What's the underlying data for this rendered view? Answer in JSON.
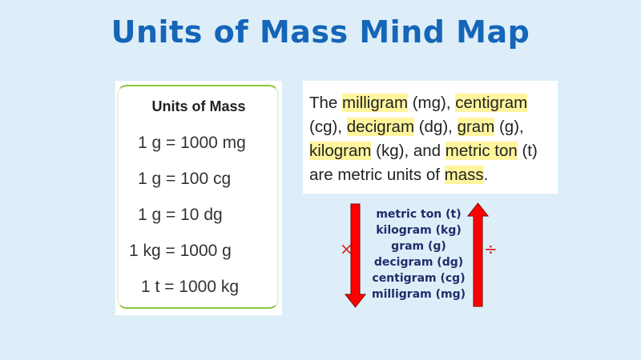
{
  "title": "Units of Mass Mind Map",
  "table": {
    "heading": "Units of Mass",
    "rows": [
      "1 g = 1000 mg",
      "1 g = 100 cg",
      "1 g = 10 dg",
      "1 kg = 1000 g",
      "1 t = 1000 kg"
    ]
  },
  "passage": {
    "parts": [
      "The ",
      "milligram",
      " (mg), ",
      "centigram",
      " (cg), ",
      "decigram",
      " (dg), ",
      "gram",
      " (g), ",
      "kilogram",
      " (kg), and ",
      "metric ton",
      " (t) are metric units of ",
      "mass",
      "."
    ]
  },
  "ladder": {
    "units": [
      "metric ton (t)",
      "kilogram (kg)",
      "gram (g)",
      "decigram (dg)",
      "centigram (cg)",
      "milligram (mg)"
    ],
    "multiply_symbol": "×",
    "divide_symbol": "÷",
    "arrow_color": "#ff0000"
  },
  "colors": {
    "title": "#1565b8",
    "highlight": "#fff59d",
    "background": "#ddeef8",
    "border": "#8cc63f"
  }
}
